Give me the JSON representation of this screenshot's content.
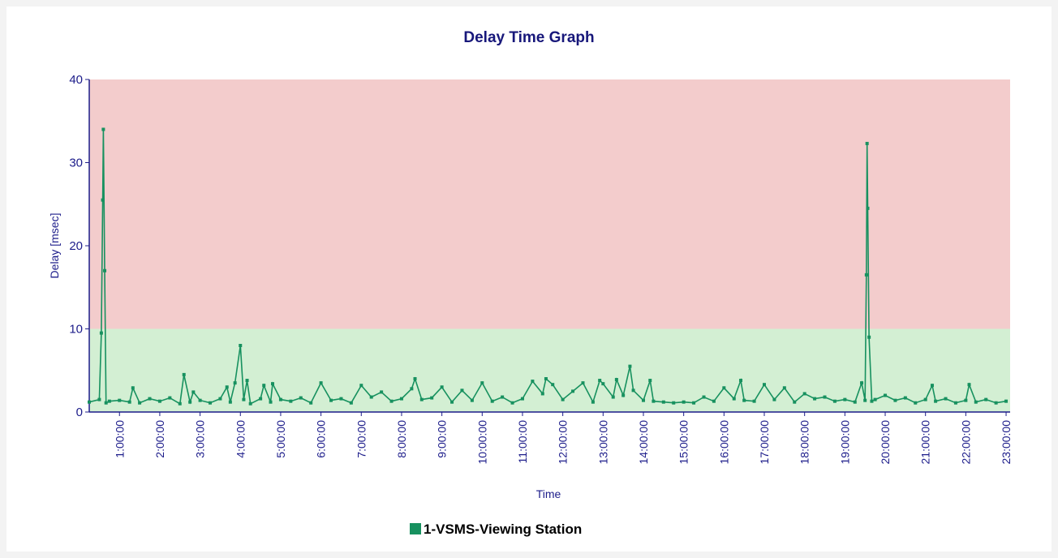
{
  "chart_data": {
    "type": "line",
    "title": "Delay Time Graph",
    "xlabel": "Time",
    "ylabel": "Delay [msec]",
    "xlim": [
      "0:15:00",
      "23:06:00"
    ],
    "xticks": [
      "1:00:00",
      "2:00:00",
      "3:00:00",
      "4:00:00",
      "5:00:00",
      "6:00:00",
      "7:00:00",
      "8:00:00",
      "9:00:00",
      "10:00:00",
      "11:00:00",
      "12:00:00",
      "13:00:00",
      "14:00:00",
      "15:00:00",
      "16:00:00",
      "17:00:00",
      "18:00:00",
      "19:00:00",
      "20:00:00",
      "21:00:00",
      "22:00:00",
      "23:00:00"
    ],
    "ylim": [
      0,
      40
    ],
    "yticks": [
      0,
      10,
      20,
      30,
      40
    ],
    "bands": [
      {
        "from": 0,
        "to": 10,
        "color": "#d3efd3"
      },
      {
        "from": 10,
        "to": 40,
        "color": "#f3cccc"
      }
    ],
    "legend": "bottom",
    "x": [
      "0:15:00",
      "0:30:00",
      "0:33:00",
      "0:35:00",
      "0:36:00",
      "0:38:00",
      "0:40:00",
      "0:45:00",
      "1:00:00",
      "1:15:00",
      "1:20:00",
      "1:30:00",
      "1:45:00",
      "2:00:00",
      "2:15:00",
      "2:30:00",
      "2:36:00",
      "2:45:00",
      "2:50:00",
      "3:00:00",
      "3:15:00",
      "3:30:00",
      "3:40:00",
      "3:45:00",
      "3:52:00",
      "4:00:00",
      "4:05:00",
      "4:10:00",
      "4:15:00",
      "4:30:00",
      "4:35:00",
      "4:45:00",
      "4:48:00",
      "5:00:00",
      "5:15:00",
      "5:30:00",
      "5:45:00",
      "6:00:00",
      "6:15:00",
      "6:30:00",
      "6:45:00",
      "7:00:00",
      "7:15:00",
      "7:30:00",
      "7:45:00",
      "8:00:00",
      "8:15:00",
      "8:20:00",
      "8:30:00",
      "8:45:00",
      "9:00:00",
      "9:15:00",
      "9:30:00",
      "9:45:00",
      "10:00:00",
      "10:15:00",
      "10:30:00",
      "10:45:00",
      "11:00:00",
      "11:15:00",
      "11:30:00",
      "11:35:00",
      "11:45:00",
      "12:00:00",
      "12:15:00",
      "12:30:00",
      "12:45:00",
      "12:55:00",
      "13:00:00",
      "13:15:00",
      "13:20:00",
      "13:30:00",
      "13:40:00",
      "13:45:00",
      "14:00:00",
      "14:10:00",
      "14:15:00",
      "14:30:00",
      "14:45:00",
      "15:00:00",
      "15:15:00",
      "15:30:00",
      "15:45:00",
      "16:00:00",
      "16:15:00",
      "16:25:00",
      "16:30:00",
      "16:45:00",
      "17:00:00",
      "17:15:00",
      "17:30:00",
      "17:45:00",
      "18:00:00",
      "18:15:00",
      "18:30:00",
      "18:45:00",
      "19:00:00",
      "19:15:00",
      "19:25:00",
      "19:30:00",
      "19:32:00",
      "19:33:00",
      "19:34:00",
      "19:36:00",
      "19:40:00",
      "19:45:00",
      "20:00:00",
      "20:15:00",
      "20:30:00",
      "20:45:00",
      "21:00:00",
      "21:10:00",
      "21:15:00",
      "21:30:00",
      "21:45:00",
      "22:00:00",
      "22:05:00",
      "22:15:00",
      "22:30:00",
      "22:45:00",
      "23:00:00"
    ],
    "series": [
      {
        "name": "1-VSMS-Viewing Station",
        "color": "#17915f",
        "values": [
          1.2,
          1.5,
          9.5,
          25.5,
          34,
          17,
          1.1,
          1.3,
          1.4,
          1.2,
          2.9,
          1.1,
          1.6,
          1.3,
          1.7,
          1.0,
          4.5,
          1.2,
          2.4,
          1.4,
          1.1,
          1.6,
          3.0,
          1.2,
          3.5,
          8.0,
          1.5,
          3.8,
          1.0,
          1.6,
          3.2,
          1.2,
          3.4,
          1.5,
          1.3,
          1.7,
          1.1,
          3.5,
          1.4,
          1.6,
          1.1,
          3.2,
          1.8,
          2.4,
          1.3,
          1.6,
          2.8,
          4.0,
          1.5,
          1.7,
          3.0,
          1.2,
          2.6,
          1.4,
          3.5,
          1.3,
          1.8,
          1.1,
          1.6,
          3.7,
          2.2,
          4.0,
          3.3,
          1.5,
          2.5,
          3.5,
          1.2,
          3.8,
          3.4,
          1.8,
          3.9,
          2.0,
          5.5,
          2.6,
          1.4,
          3.8,
          1.3,
          1.2,
          1.1,
          1.2,
          1.1,
          1.8,
          1.3,
          2.9,
          1.6,
          3.8,
          1.4,
          1.3,
          3.3,
          1.5,
          2.9,
          1.2,
          2.2,
          1.6,
          1.8,
          1.3,
          1.5,
          1.2,
          3.5,
          1.4,
          16.5,
          32.3,
          24.5,
          9.0,
          1.3,
          1.5,
          2.0,
          1.4,
          1.7,
          1.1,
          1.5,
          3.2,
          1.3,
          1.6,
          1.1,
          1.4,
          3.3,
          1.2,
          1.5,
          1.1,
          1.3
        ]
      }
    ]
  }
}
